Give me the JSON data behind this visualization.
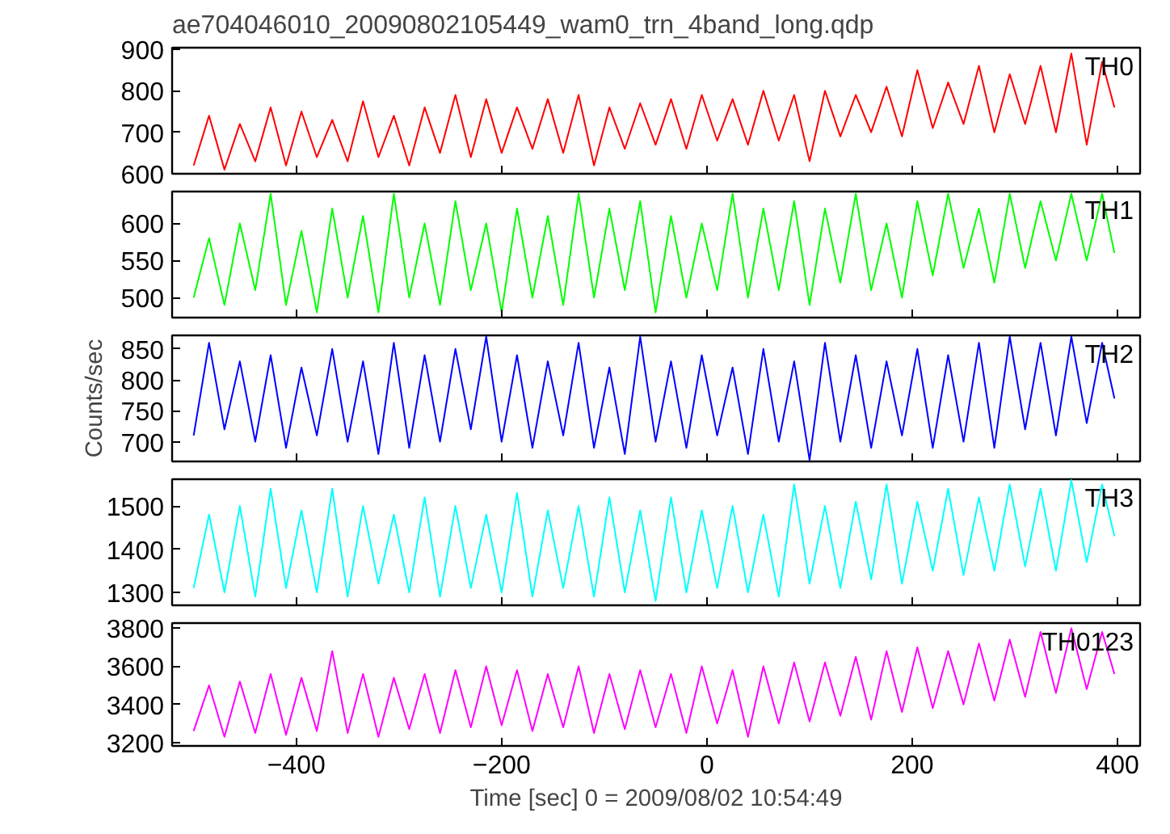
{
  "chart_data": [
    {
      "type": "line",
      "title": "ae704046010_20090802105449_wam0_trn_4band_long.qdp",
      "grid": false,
      "tick_labels": "y",
      "xlim": [
        -521,
        422
      ],
      "xticks": [
        -400,
        -200,
        0,
        200,
        400
      ],
      "ylim": [
        600,
        904
      ],
      "yticks": [
        600,
        700,
        800,
        900
      ],
      "x": [
        -500,
        -485,
        -470,
        -455,
        -440,
        -425,
        -410,
        -395,
        -380,
        -365,
        -350,
        -335,
        -320,
        -305,
        -290,
        -275,
        -260,
        -245,
        -230,
        -215,
        -200,
        -185,
        -170,
        -155,
        -140,
        -125,
        -110,
        -95,
        -80,
        -65,
        -50,
        -35,
        -20,
        -5,
        10,
        25,
        40,
        55,
        70,
        85,
        100,
        115,
        130,
        145,
        160,
        175,
        190,
        205,
        220,
        235,
        250,
        265,
        280,
        295,
        310,
        325,
        340,
        355,
        370,
        385,
        397
      ],
      "series": [
        {
          "name": "TH0",
          "color": "#ff0000",
          "values": [
            620,
            740,
            610,
            720,
            630,
            760,
            620,
            750,
            640,
            730,
            630,
            775,
            640,
            740,
            620,
            760,
            650,
            790,
            640,
            780,
            650,
            760,
            660,
            780,
            650,
            790,
            620,
            760,
            660,
            770,
            670,
            780,
            660,
            790,
            680,
            780,
            670,
            800,
            680,
            790,
            630,
            800,
            690,
            790,
            700,
            810,
            690,
            850,
            710,
            820,
            720,
            860,
            700,
            840,
            720,
            860,
            700,
            890,
            670,
            870,
            760
          ]
        }
      ]
    },
    {
      "type": "line",
      "grid": false,
      "tick_labels": "y",
      "xlim": [
        -521,
        422
      ],
      "xticks": [
        -400,
        -200,
        0,
        200,
        400
      ],
      "ylim": [
        473,
        643
      ],
      "yticks": [
        500,
        550,
        600
      ],
      "x": [
        -500,
        -485,
        -470,
        -455,
        -440,
        -425,
        -410,
        -395,
        -380,
        -365,
        -350,
        -335,
        -320,
        -305,
        -290,
        -275,
        -260,
        -245,
        -230,
        -215,
        -200,
        -185,
        -170,
        -155,
        -140,
        -125,
        -110,
        -95,
        -80,
        -65,
        -50,
        -35,
        -20,
        -5,
        10,
        25,
        40,
        55,
        70,
        85,
        100,
        115,
        130,
        145,
        160,
        175,
        190,
        205,
        220,
        235,
        250,
        265,
        280,
        295,
        310,
        325,
        340,
        355,
        370,
        385,
        397
      ],
      "series": [
        {
          "name": "TH1",
          "color": "#00ff00",
          "values": [
            500,
            580,
            490,
            600,
            510,
            640,
            490,
            590,
            480,
            620,
            500,
            610,
            480,
            640,
            500,
            600,
            490,
            630,
            510,
            600,
            480,
            620,
            500,
            610,
            490,
            640,
            500,
            620,
            510,
            630,
            480,
            610,
            500,
            600,
            510,
            640,
            500,
            620,
            510,
            630,
            490,
            620,
            520,
            640,
            510,
            600,
            500,
            630,
            530,
            640,
            540,
            620,
            520,
            640,
            540,
            630,
            550,
            640,
            550,
            640,
            560
          ]
        }
      ]
    },
    {
      "type": "line",
      "ylabel": "Counts/sec",
      "grid": false,
      "tick_labels": "y",
      "xlim": [
        -521,
        422
      ],
      "xticks": [
        -400,
        -200,
        0,
        200,
        400
      ],
      "ylim": [
        668,
        872
      ],
      "yticks": [
        700,
        750,
        800,
        850
      ],
      "x": [
        -500,
        -485,
        -470,
        -455,
        -440,
        -425,
        -410,
        -395,
        -380,
        -365,
        -350,
        -335,
        -320,
        -305,
        -290,
        -275,
        -260,
        -245,
        -230,
        -215,
        -200,
        -185,
        -170,
        -155,
        -140,
        -125,
        -110,
        -95,
        -80,
        -65,
        -50,
        -35,
        -20,
        -5,
        10,
        25,
        40,
        55,
        70,
        85,
        100,
        115,
        130,
        145,
        160,
        175,
        190,
        205,
        220,
        235,
        250,
        265,
        280,
        295,
        310,
        325,
        340,
        355,
        370,
        385,
        397
      ],
      "series": [
        {
          "name": "TH2",
          "color": "#0000ff",
          "values": [
            710,
            860,
            720,
            830,
            700,
            840,
            690,
            820,
            710,
            850,
            700,
            830,
            680,
            860,
            690,
            840,
            700,
            850,
            720,
            870,
            700,
            840,
            690,
            830,
            710,
            860,
            690,
            820,
            680,
            870,
            700,
            830,
            690,
            840,
            710,
            820,
            680,
            850,
            700,
            830,
            670,
            860,
            700,
            840,
            690,
            830,
            710,
            850,
            690,
            840,
            700,
            860,
            690,
            870,
            720,
            860,
            710,
            870,
            730,
            860,
            770
          ]
        }
      ]
    },
    {
      "type": "line",
      "grid": false,
      "tick_labels": "y",
      "xlim": [
        -521,
        422
      ],
      "xticks": [
        -400,
        -200,
        0,
        200,
        400
      ],
      "ylim": [
        1270,
        1562
      ],
      "yticks": [
        1300,
        1400,
        1500
      ],
      "x": [
        -500,
        -485,
        -470,
        -455,
        -440,
        -425,
        -410,
        -395,
        -380,
        -365,
        -350,
        -335,
        -320,
        -305,
        -290,
        -275,
        -260,
        -245,
        -230,
        -215,
        -200,
        -185,
        -170,
        -155,
        -140,
        -125,
        -110,
        -95,
        -80,
        -65,
        -50,
        -35,
        -20,
        -5,
        10,
        25,
        40,
        55,
        70,
        85,
        100,
        115,
        130,
        145,
        160,
        175,
        190,
        205,
        220,
        235,
        250,
        265,
        280,
        295,
        310,
        325,
        340,
        355,
        370,
        385,
        397
      ],
      "series": [
        {
          "name": "TH3",
          "color": "#00ffff",
          "values": [
            1310,
            1480,
            1300,
            1500,
            1290,
            1540,
            1310,
            1490,
            1300,
            1540,
            1290,
            1500,
            1320,
            1480,
            1300,
            1520,
            1290,
            1500,
            1310,
            1480,
            1300,
            1530,
            1290,
            1490,
            1310,
            1500,
            1290,
            1520,
            1300,
            1490,
            1280,
            1520,
            1300,
            1490,
            1310,
            1500,
            1300,
            1480,
            1290,
            1550,
            1320,
            1500,
            1310,
            1510,
            1330,
            1550,
            1320,
            1510,
            1350,
            1540,
            1340,
            1520,
            1350,
            1550,
            1360,
            1540,
            1350,
            1560,
            1370,
            1550,
            1430
          ]
        }
      ]
    },
    {
      "type": "line",
      "xlabel": "Time [sec] 0 = 2009/08/02 10:54:49",
      "grid": false,
      "xlim": [
        -521,
        422
      ],
      "xticks": [
        -400,
        -200,
        0,
        200,
        400
      ],
      "ylim": [
        3182,
        3827
      ],
      "yticks": [
        3200,
        3400,
        3600,
        3800
      ],
      "x": [
        -500,
        -485,
        -470,
        -455,
        -440,
        -425,
        -410,
        -395,
        -380,
        -365,
        -350,
        -335,
        -320,
        -305,
        -290,
        -275,
        -260,
        -245,
        -230,
        -215,
        -200,
        -185,
        -170,
        -155,
        -140,
        -125,
        -110,
        -95,
        -80,
        -65,
        -50,
        -35,
        -20,
        -5,
        10,
        25,
        40,
        55,
        70,
        85,
        100,
        115,
        130,
        145,
        160,
        175,
        190,
        205,
        220,
        235,
        250,
        265,
        280,
        295,
        310,
        325,
        340,
        355,
        370,
        385,
        397
      ],
      "series": [
        {
          "name": "TH0123",
          "color": "#ff00ff",
          "values": [
            3260,
            3500,
            3230,
            3520,
            3250,
            3560,
            3240,
            3540,
            3260,
            3680,
            3250,
            3560,
            3230,
            3540,
            3270,
            3560,
            3250,
            3580,
            3280,
            3600,
            3290,
            3580,
            3260,
            3560,
            3280,
            3600,
            3250,
            3560,
            3270,
            3580,
            3280,
            3560,
            3250,
            3600,
            3300,
            3580,
            3230,
            3600,
            3300,
            3620,
            3310,
            3620,
            3340,
            3650,
            3320,
            3680,
            3360,
            3700,
            3380,
            3680,
            3400,
            3720,
            3420,
            3740,
            3440,
            3780,
            3460,
            3800,
            3480,
            3780,
            3560
          ]
        }
      ]
    }
  ]
}
